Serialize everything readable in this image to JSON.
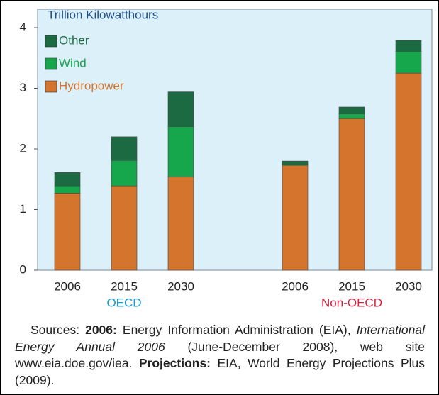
{
  "chart_data": {
    "type": "stacked_bar",
    "y_label": "Trillion Kilowatthours",
    "ylim": [
      0,
      4
    ],
    "yticks": [
      0,
      1,
      2,
      3,
      4
    ],
    "groups": [
      {
        "name": "OECD",
        "color": "#1a9ad6",
        "categories": [
          "2006",
          "2015",
          "2030"
        ]
      },
      {
        "name": "Non-OECD",
        "color": "#d11f3c",
        "categories": [
          "2006",
          "2015",
          "2030"
        ]
      }
    ],
    "series": [
      {
        "name": "Hydropower",
        "color": "#d5752d",
        "values": [
          1.27,
          1.39,
          1.54,
          1.73,
          2.5,
          3.25
        ]
      },
      {
        "name": "Wind",
        "color": "#16a64c",
        "values": [
          0.12,
          0.42,
          0.83,
          0.02,
          0.08,
          0.36
        ]
      },
      {
        "name": "Other",
        "color": "#1b6a42",
        "values": [
          0.22,
          0.39,
          0.57,
          0.05,
          0.11,
          0.18
        ]
      }
    ]
  },
  "caption": [
    {
      "text": "Sources: "
    },
    {
      "text": "2006:",
      "bold": true
    },
    {
      "text": " Energy Information Administration (EIA), "
    },
    {
      "text": "International Energy Annual 2006",
      "italic": true
    },
    {
      "text": " (June-December 2008), web site www.eia.doe.gov/iea. "
    },
    {
      "text": "Projections:",
      "bold": true
    },
    {
      "text": " EIA, World Energy Projections Plus (2009)."
    }
  ]
}
